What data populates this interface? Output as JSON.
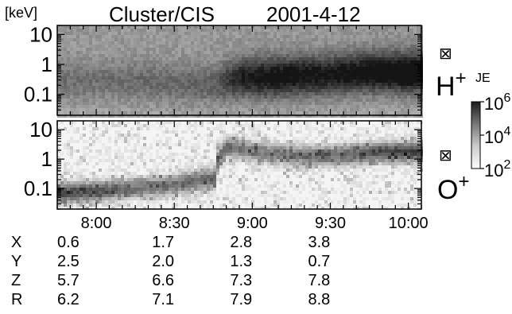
{
  "header": {
    "unit_label": "[keV]",
    "instrument": "Cluster/CIS",
    "date": "2001-4-12"
  },
  "chart_data": [
    {
      "type": "heatmap",
      "panel": "H+",
      "species_base": "H",
      "species_sup": "+",
      "quantity": "JE",
      "ylabel": "[keV]",
      "yscale": "log",
      "ylim": [
        0.02,
        20
      ],
      "yticks": [
        "10",
        "1",
        "0.1"
      ],
      "ytick_values": [
        10,
        1,
        0.1
      ],
      "xlim": [
        "07:45",
        "10:05"
      ],
      "xticks": [
        "8:00",
        "8:30",
        "9:00",
        "9:30",
        "10:00"
      ],
      "look_direction_symbol": "⊠",
      "spectrogram_profile": {
        "time": [
          "07:45",
          "08:00",
          "08:15",
          "08:30",
          "08:45",
          "08:55",
          "09:05",
          "09:15",
          "09:30",
          "09:45",
          "10:00"
        ],
        "peak_energy_keV": [
          0.3,
          0.3,
          0.3,
          0.25,
          0.25,
          0.4,
          0.4,
          0.45,
          0.5,
          0.6,
          0.6
        ],
        "relative_intensity": [
          0.25,
          0.25,
          0.28,
          0.3,
          0.35,
          0.7,
          0.8,
          0.8,
          0.75,
          0.85,
          0.95
        ]
      }
    },
    {
      "type": "heatmap",
      "panel": "O+",
      "species_base": "O",
      "species_sup": "+",
      "ylabel": "[keV]",
      "yscale": "log",
      "ylim": [
        0.02,
        20
      ],
      "yticks": [
        "10",
        "1",
        "0.1"
      ],
      "ytick_values": [
        10,
        1,
        0.1
      ],
      "xlim": [
        "07:45",
        "10:05"
      ],
      "xticks": [
        "8:00",
        "8:30",
        "9:00",
        "9:30",
        "10:00"
      ],
      "look_direction_symbol": "⊠",
      "spectrogram_profile": {
        "time": [
          "07:45",
          "08:00",
          "08:15",
          "08:30",
          "08:45",
          "08:50",
          "09:00",
          "09:15",
          "09:30",
          "09:45",
          "10:00"
        ],
        "peak_energy_keV": [
          0.08,
          0.09,
          0.12,
          0.15,
          0.25,
          3,
          2,
          1.5,
          1.5,
          1.8,
          2
        ],
        "relative_intensity": [
          0.75,
          0.7,
          0.55,
          0.6,
          0.65,
          0.6,
          0.55,
          0.55,
          0.6,
          0.7,
          0.8
        ]
      }
    }
  ],
  "colorbar": {
    "label": "JE",
    "ticks": [
      {
        "base": "10",
        "exp": "6",
        "value": 1000000
      },
      {
        "base": "10",
        "exp": "4",
        "value": 10000
      },
      {
        "base": "10",
        "exp": "2",
        "value": 100
      }
    ],
    "scale": "log",
    "range": [
      100,
      1000000
    ]
  },
  "ephemeris": {
    "times": [
      "8:00",
      "8:30",
      "9:00",
      "9:30",
      "10:00"
    ],
    "rows": [
      {
        "label": "X",
        "values": [
          "0.6",
          "1.7",
          "2.8",
          "3.8"
        ]
      },
      {
        "label": "Y",
        "values": [
          "2.5",
          "2.0",
          "1.3",
          "0.7"
        ]
      },
      {
        "label": "Z",
        "values": [
          "5.7",
          "6.6",
          "7.3",
          "7.8"
        ]
      },
      {
        "label": "R",
        "values": [
          "6.2",
          "7.1",
          "7.9",
          "8.8"
        ]
      }
    ]
  }
}
